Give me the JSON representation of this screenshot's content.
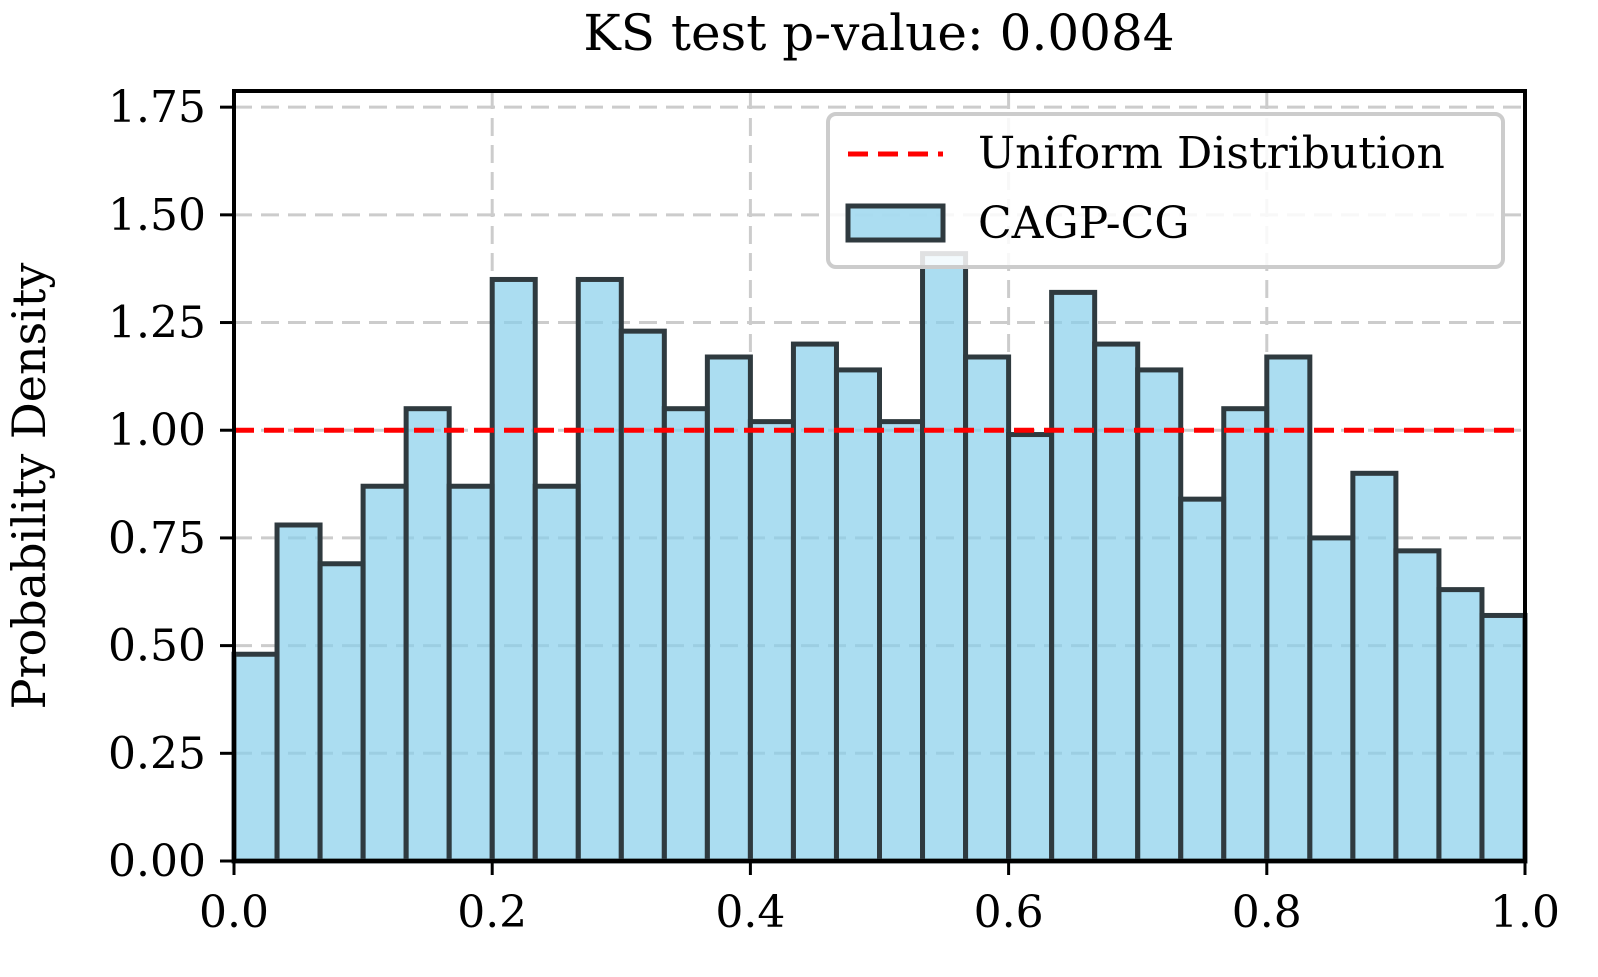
{
  "chart_data": {
    "type": "bar",
    "title": "KS test p-value: 0.0084",
    "xlabel": "",
    "ylabel": "Probability Density",
    "xlim": [
      0.0,
      1.0
    ],
    "ylim": [
      0.0,
      1.75
    ],
    "grid": true,
    "x_ticks": [
      "0.0",
      "0.2",
      "0.4",
      "0.6",
      "0.8",
      "1.0"
    ],
    "y_ticks": [
      "0.00",
      "0.25",
      "0.50",
      "0.75",
      "1.00",
      "1.25",
      "1.50",
      "1.75"
    ],
    "bins": 30,
    "legend_position": "top-right",
    "series": [
      {
        "name": "CAGP-CG",
        "kind": "histogram",
        "color": "#87CEEB",
        "edge_color": "#2f3a3f",
        "values": [
          0.48,
          0.78,
          0.69,
          0.87,
          1.05,
          0.87,
          1.35,
          0.87,
          1.35,
          1.23,
          1.05,
          1.17,
          1.02,
          1.2,
          1.14,
          1.02,
          1.41,
          1.17,
          0.99,
          1.32,
          1.2,
          1.14,
          0.84,
          1.05,
          1.17,
          0.75,
          0.9,
          0.72,
          0.63,
          0.57
        ]
      },
      {
        "name": "Uniform Distribution",
        "kind": "hline",
        "color": "#ff0000",
        "value": 1.0
      }
    ]
  }
}
